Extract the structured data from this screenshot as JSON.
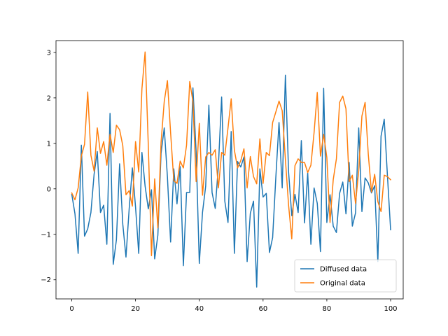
{
  "chart_data": {
    "type": "line",
    "title": "",
    "xlabel": "",
    "ylabel": "",
    "xlim": [
      -4.95,
      103.95
    ],
    "ylim": [
      -2.42,
      3.26
    ],
    "xticks": [
      0,
      20,
      40,
      60,
      80,
      100
    ],
    "yticks": [
      -2,
      -1,
      0,
      1,
      2,
      3
    ],
    "legend_position": "lower-right",
    "grid": false,
    "series": [
      {
        "name": "Diffused data",
        "color": "#1f77b4",
        "values": [
          -0.12,
          -0.55,
          -1.42,
          0.96,
          -1.04,
          -0.88,
          -0.52,
          0.32,
          0.82,
          -0.52,
          -0.36,
          -1.22,
          1.66,
          -1.66,
          -1.12,
          0.55,
          -0.78,
          -1.5,
          -0.44,
          0.46,
          -0.4,
          -1.42,
          0.8,
          0.06,
          -0.44,
          -0.02,
          -1.54,
          -1.02,
          0.78,
          1.34,
          0.26,
          -1.17,
          0.44,
          -0.33,
          0.49,
          -1.69,
          -0.08,
          -0.08,
          2.22,
          0.82,
          -1.64,
          -0.52,
          0.06,
          1.84,
          -0.08,
          -0.43,
          0.52,
          2.02,
          -0.27,
          -0.74,
          1.26,
          -1.42,
          0.6,
          0.48,
          0.7,
          -1.6,
          -0.54,
          -0.27,
          -2.16,
          0.44,
          -0.18,
          -0.1,
          -1.4,
          -1.07,
          0.25,
          1.46,
          0.02,
          2.5,
          0.37,
          -0.59,
          -0.12,
          -0.52,
          1.06,
          -0.75,
          0.35,
          -1.22,
          0.02,
          -0.32,
          -1.38,
          2.21,
          -0.74,
          -0.13,
          -0.82,
          -0.96,
          -0.1,
          0.15,
          -0.55,
          0.58,
          -0.82,
          -0.53,
          1.34,
          -0.5,
          0.24,
          0.13,
          -0.09,
          0.07,
          -1.6,
          1.16,
          1.53,
          0.3,
          -0.9
        ]
      },
      {
        "name": "Original data",
        "color": "#ff7f0e",
        "values": [
          -0.09,
          -0.24,
          0.02,
          0.72,
          0.98,
          2.13,
          0.74,
          0.39,
          1.34,
          0.78,
          1.04,
          0.52,
          1.2,
          0.8,
          1.4,
          1.3,
          0.95,
          -0.13,
          -0.04,
          -0.38,
          1.04,
          0.37,
          2.2,
          3.01,
          0.96,
          -1.47,
          0.22,
          -0.86,
          1.02,
          1.92,
          2.38,
          1.23,
          0.18,
          0.12,
          0.61,
          0.46,
          0.96,
          2.36,
          1.92,
          0.16,
          1.44,
          -0.14,
          0.7,
          0.8,
          0.74,
          0.86,
          0.02,
          0.8,
          0.74,
          1.34,
          1.98,
          0.85,
          0.46,
          0.62,
          0.88,
          0.02,
          0.71,
          0.27,
          0.11,
          1.1,
          0.12,
          0.8,
          0.73,
          1.46,
          1.69,
          1.93,
          1.72,
          0.65,
          -0.36,
          -1.1,
          0.51,
          0.66,
          0.58,
          0.58,
          0.36,
          0.52,
          1.24,
          2.12,
          0.72,
          1.2,
          0.69,
          -0.74,
          0.2,
          0.66,
          1.9,
          2.04,
          1.76,
          0.16,
          0.3,
          -0.32,
          0.4,
          1.6,
          1.9,
          0.76,
          -0.07,
          0.32,
          -0.28,
          -0.5,
          0.3,
          0.27,
          0.2
        ]
      }
    ]
  }
}
